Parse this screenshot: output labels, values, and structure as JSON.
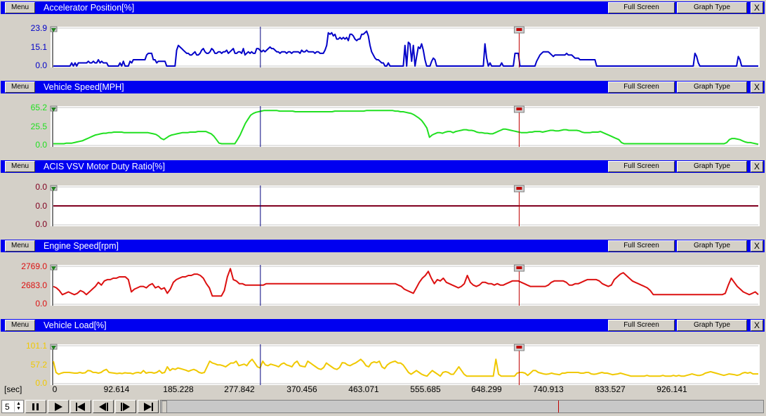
{
  "panels": [
    {
      "menu_label": "Menu",
      "title": "Accelerator Position[%]",
      "full_screen_label": "Full Screen",
      "graph_type_label": "Graph Type",
      "close_label": "X",
      "color": "#0000c8",
      "y_labels": [
        "23.9",
        "15.1",
        "0.0"
      ],
      "y_range": [
        0,
        23.9
      ],
      "data": [
        0,
        0,
        0,
        0,
        0,
        0,
        0,
        0,
        0,
        0,
        0,
        2,
        0,
        2,
        0,
        2,
        2,
        2,
        2,
        2,
        2,
        3,
        2,
        2,
        3,
        2,
        2,
        4,
        2,
        3,
        2,
        2,
        2,
        0,
        0,
        0,
        0,
        0,
        0,
        0,
        2,
        0,
        3,
        0,
        0,
        0,
        3,
        2,
        4,
        4,
        4,
        4,
        4,
        4,
        4,
        4,
        7,
        8,
        8,
        8,
        4,
        4,
        2,
        3,
        3,
        3,
        3,
        3,
        0,
        0,
        0,
        0,
        0,
        0,
        10,
        13,
        12,
        11,
        10,
        9,
        8,
        8,
        7,
        7,
        8,
        9,
        7,
        7,
        8,
        10,
        11,
        9,
        8,
        8,
        9,
        11,
        10,
        8,
        8,
        9,
        9,
        8,
        9,
        9,
        10,
        8,
        9,
        10,
        11,
        8,
        8,
        9,
        9,
        8,
        11,
        7,
        8,
        9,
        8,
        9,
        8,
        8,
        11,
        11,
        10,
        9,
        10,
        9,
        10,
        11,
        12,
        11,
        11,
        10,
        9,
        9,
        8,
        9,
        9,
        9,
        8,
        9,
        9,
        8,
        9,
        9,
        9,
        9,
        8,
        10,
        9,
        9,
        10,
        9,
        9,
        9,
        9,
        8,
        9,
        9,
        8,
        8,
        8,
        10,
        13,
        21,
        20,
        21,
        19,
        20,
        17,
        17,
        18,
        17,
        18,
        17,
        18,
        16,
        20,
        20,
        19,
        17,
        16,
        17,
        17,
        20,
        20,
        21,
        22,
        19,
        13,
        9,
        7,
        5,
        4,
        4,
        3,
        2,
        2,
        0,
        0,
        2,
        0,
        0,
        0,
        0,
        0,
        0,
        0,
        0,
        0,
        13,
        0,
        15,
        14,
        3,
        13,
        0,
        6,
        12,
        11,
        14,
        10,
        4,
        0,
        0,
        0,
        3,
        5,
        4,
        0,
        0,
        0,
        0,
        0,
        0,
        0,
        0,
        0,
        0,
        0,
        0,
        0,
        0,
        0,
        0,
        0,
        0,
        0,
        0,
        0,
        0,
        0,
        0,
        0,
        0,
        0,
        0,
        0,
        14,
        5,
        0,
        2,
        0,
        0,
        0,
        0,
        0,
        0,
        2,
        0,
        0,
        0,
        0,
        0,
        0,
        0,
        8,
        8,
        8,
        0,
        0,
        0,
        0,
        0,
        0,
        0,
        0,
        0,
        0,
        3,
        5,
        7,
        8,
        9,
        9,
        9,
        9,
        8,
        7,
        6,
        7,
        7,
        7,
        7,
        7,
        7,
        7,
        8,
        7,
        7,
        7,
        6,
        5,
        5,
        5,
        4,
        4,
        4,
        4,
        4,
        4,
        4,
        4,
        4,
        4,
        0,
        0,
        0,
        0,
        0,
        0,
        0,
        0,
        0,
        0,
        0,
        0,
        0,
        0,
        0,
        0,
        0,
        0,
        0,
        0,
        0,
        0,
        0,
        0,
        0,
        0,
        0,
        0,
        0,
        0,
        0,
        0,
        0,
        0,
        0,
        0,
        0,
        0,
        0,
        0,
        0,
        0,
        0,
        0,
        0,
        0,
        0,
        0,
        0,
        0,
        0,
        0,
        0,
        0,
        0,
        0,
        0,
        0,
        0,
        8,
        6,
        2,
        0,
        0,
        0,
        0,
        0,
        0,
        0,
        0,
        0,
        0,
        0,
        0,
        0,
        0,
        0,
        0,
        0,
        0,
        0,
        0,
        0,
        0,
        0,
        6,
        4,
        0,
        0,
        0,
        0,
        0,
        0,
        0,
        0,
        0,
        0,
        0
      ]
    },
    {
      "menu_label": "Menu",
      "title": "Vehicle Speed[MPH]",
      "full_screen_label": "Full Screen",
      "graph_type_label": "Graph Type",
      "close_label": "X",
      "color": "#20e020",
      "y_labels": [
        "65.2",
        "25.5",
        "0.0"
      ],
      "y_range": [
        0,
        65.2
      ],
      "data": [
        3,
        3,
        3,
        3,
        3,
        4,
        4,
        4,
        5,
        6,
        7,
        8,
        10,
        12,
        14,
        16,
        18,
        19,
        20,
        21,
        21,
        22,
        22,
        23,
        23,
        23,
        23,
        22,
        22,
        22,
        22,
        22,
        22,
        22,
        22,
        22,
        22,
        21,
        20,
        19,
        16,
        12,
        10,
        13,
        16,
        18,
        19,
        20,
        21,
        22,
        22,
        22,
        23,
        23,
        23,
        24,
        24,
        24,
        24,
        22,
        20,
        16,
        10,
        4,
        3,
        3,
        3,
        3,
        3,
        3,
        10,
        18,
        28,
        38,
        45,
        52,
        55,
        57,
        58,
        59,
        60,
        60,
        60,
        60,
        60,
        60,
        59,
        59,
        59,
        59,
        59,
        59,
        58,
        58,
        58,
        58,
        58,
        58,
        58,
        58,
        58,
        58,
        58,
        58,
        58,
        58,
        58,
        59,
        59,
        59,
        59,
        59,
        59,
        59,
        59,
        59,
        59,
        59,
        59,
        60,
        60,
        60,
        60,
        60,
        60,
        60,
        60,
        60,
        60,
        60,
        59,
        59,
        58,
        58,
        57,
        56,
        55,
        53,
        50,
        47,
        43,
        37,
        30,
        14,
        18,
        20,
        22,
        22,
        21,
        23,
        24,
        24,
        22,
        24,
        25,
        26,
        27,
        27,
        26,
        26,
        25,
        23,
        22,
        22,
        21,
        21,
        20,
        20,
        22,
        24,
        26,
        28,
        28,
        27,
        26,
        25,
        24,
        23,
        22,
        22,
        22,
        23,
        23,
        24,
        24,
        24,
        23,
        24,
        25,
        26,
        26,
        25,
        25,
        26,
        27,
        27,
        26,
        26,
        26,
        26,
        25,
        23,
        22,
        22,
        22,
        23,
        23,
        23,
        24,
        22,
        20,
        18,
        16,
        14,
        12,
        10,
        5,
        3,
        3,
        3,
        3,
        3,
        3,
        3,
        3,
        3,
        3,
        3,
        3,
        3,
        3,
        3,
        3,
        3,
        3,
        3,
        3,
        3,
        3,
        3,
        3,
        3,
        3,
        3,
        3,
        3,
        3,
        3,
        3,
        3,
        3,
        3,
        3,
        3,
        3,
        3,
        5,
        10,
        12,
        12,
        11,
        10,
        8,
        6,
        5,
        5,
        4,
        3,
        2
      ]
    },
    {
      "menu_label": "Menu",
      "title": "ACIS VSV Motor Duty Ratio[%]",
      "full_screen_label": "Full Screen",
      "graph_type_label": "Graph Type",
      "close_label": "X",
      "color": "#800020",
      "y_labels": [
        "0.0",
        "0.0",
        "0.0"
      ],
      "y_range": [
        -1,
        1
      ],
      "data": [
        0,
        0
      ]
    },
    {
      "menu_label": "Menu",
      "title": "Engine Speed[rpm]",
      "full_screen_label": "Full Screen",
      "graph_type_label": "Graph Type",
      "close_label": "X",
      "color": "#dc1010",
      "y_labels": [
        "2769.0",
        "2683.0",
        "0.0"
      ],
      "y_range": [
        0,
        2769.0
      ],
      "data": [
        1300,
        1200,
        1000,
        700,
        800,
        900,
        800,
        700,
        800,
        1000,
        900,
        700,
        900,
        1100,
        1300,
        1600,
        1400,
        1700,
        1800,
        1800,
        1900,
        1900,
        2000,
        2000,
        2000,
        1800,
        900,
        1100,
        1200,
        1300,
        1300,
        1200,
        1400,
        1500,
        1200,
        1300,
        1100,
        1200,
        800,
        1100,
        1600,
        1800,
        1900,
        2000,
        2000,
        2100,
        2100,
        2200,
        2200,
        2100,
        1900,
        1500,
        1200,
        600,
        600,
        600,
        600,
        1000,
        2000,
        2600,
        1800,
        1700,
        1500,
        1500,
        1400,
        1400,
        1400,
        1400,
        1400,
        1400,
        1400,
        1500,
        1500,
        1500,
        1500,
        1500,
        1500,
        1500,
        1500,
        1500,
        1500,
        1500,
        1500,
        1500,
        1500,
        1500,
        1500,
        1500,
        1500,
        1500,
        1500,
        1500,
        1500,
        1500,
        1500,
        1500,
        1500,
        1500,
        1500,
        1500,
        1500,
        1500,
        1500,
        1500,
        1500,
        1500,
        1500,
        1500,
        1500,
        1500,
        1500,
        1500,
        1500,
        1500,
        1500,
        1400,
        1300,
        1100,
        1000,
        900,
        800,
        1200,
        1600,
        1900,
        2100,
        2400,
        1900,
        1500,
        1800,
        1700,
        1900,
        1600,
        1500,
        1400,
        1300,
        1200,
        1300,
        1500,
        2100,
        1600,
        1400,
        1300,
        1400,
        1600,
        1600,
        1500,
        1500,
        1400,
        1500,
        1400,
        1400,
        1500,
        1600,
        1700,
        1700,
        1700,
        1600,
        1500,
        1400,
        1300,
        1300,
        1300,
        1300,
        1300,
        1300,
        1400,
        1600,
        1700,
        1700,
        1700,
        1700,
        1600,
        1400,
        1400,
        1500,
        1500,
        1600,
        1700,
        1800,
        1800,
        1800,
        1800,
        1700,
        1500,
        1400,
        1300,
        1400,
        1800,
        2000,
        2200,
        2300,
        2100,
        1900,
        1700,
        1600,
        1500,
        1400,
        1300,
        1200,
        1000,
        700,
        700,
        700,
        700,
        700,
        700,
        700,
        700,
        700,
        700,
        700,
        700,
        700,
        700,
        700,
        700,
        700,
        700,
        700,
        700,
        700,
        700,
        700,
        700,
        800,
        1400,
        1900,
        1600,
        1300,
        1100,
        900,
        800,
        700,
        800,
        900,
        700
      ]
    },
    {
      "menu_label": "Menu",
      "title": "Vehicle Load[%]",
      "full_screen_label": "Full Screen",
      "graph_type_label": "Graph Type",
      "close_label": "X",
      "color": "#f0c800",
      "y_labels": [
        "101.1",
        "57.2",
        "0.0"
      ],
      "y_range": [
        0,
        101.1
      ],
      "data": [
        60,
        30,
        25,
        28,
        30,
        30,
        30,
        29,
        28,
        28,
        30,
        28,
        29,
        35,
        34,
        30,
        30,
        28,
        30,
        35,
        38,
        30,
        29,
        28,
        27,
        28,
        27,
        29,
        28,
        28,
        26,
        29,
        30,
        28,
        35,
        28,
        30,
        30,
        28,
        30,
        35,
        28,
        30,
        45,
        35,
        40,
        38,
        42,
        40,
        38,
        36,
        33,
        36,
        38,
        35,
        30,
        28,
        30,
        45,
        60,
        55,
        53,
        50,
        50,
        48,
        45,
        50,
        55,
        55,
        60,
        48,
        50,
        52,
        48,
        58,
        65,
        55,
        45,
        42,
        60,
        50,
        48,
        52,
        50,
        48,
        45,
        52,
        55,
        50,
        48,
        45,
        55,
        60,
        48,
        46,
        45,
        60,
        55,
        50,
        45,
        40,
        38,
        43,
        55,
        50,
        45,
        40,
        38,
        43,
        56,
        55,
        50,
        48,
        52,
        55,
        60,
        65,
        58,
        48,
        45,
        55,
        58,
        56,
        60,
        45,
        40,
        50,
        55,
        58,
        60,
        55,
        55,
        50,
        40,
        30,
        25,
        30,
        35,
        30,
        25,
        22,
        20,
        28,
        35,
        30,
        25,
        20,
        30,
        32,
        30,
        25,
        25,
        35,
        45,
        35,
        25,
        20,
        20,
        20,
        20,
        20,
        20,
        20,
        20,
        20,
        20,
        20,
        65,
        25,
        20,
        20,
        20,
        20,
        20,
        20,
        28,
        30,
        30,
        28,
        22,
        28,
        35,
        35,
        30,
        28,
        26,
        25,
        26,
        28,
        26,
        25,
        24,
        28,
        28,
        30,
        30,
        30,
        30,
        30,
        28,
        28,
        30,
        30,
        26,
        25,
        26,
        28,
        30,
        28,
        28,
        26,
        24,
        25,
        26,
        28,
        26,
        24,
        22,
        20,
        20,
        20,
        20,
        20,
        20,
        22,
        20,
        20,
        20,
        20,
        20,
        22,
        20,
        20,
        20,
        22,
        20,
        22,
        20,
        20,
        22,
        24,
        26,
        24,
        22,
        22,
        24,
        28,
        30,
        32,
        30,
        28,
        26,
        24,
        22,
        24,
        26,
        25,
        24,
        22,
        24,
        28,
        30,
        28,
        30,
        26,
        26,
        26
      ]
    }
  ],
  "x_axis": {
    "unit_label": "[sec]",
    "ticks": [
      "0",
      "92.614",
      "185.228",
      "277.842",
      "370.456",
      "463.071",
      "555.685",
      "648.299",
      "740.913",
      "833.527",
      "926.141"
    ],
    "range": [
      0,
      926.141
    ]
  },
  "cursors": {
    "left_cursor_time": 272,
    "right_cursor_time": 612,
    "left_color": "#000080",
    "right_color": "#c00000"
  },
  "playback": {
    "speed_value": "5",
    "controls": [
      "pause-icon",
      "play-icon",
      "skip-to-start-icon",
      "step-back-icon",
      "step-forward-icon",
      "skip-to-end-icon"
    ],
    "position_fraction": 0.66
  }
}
